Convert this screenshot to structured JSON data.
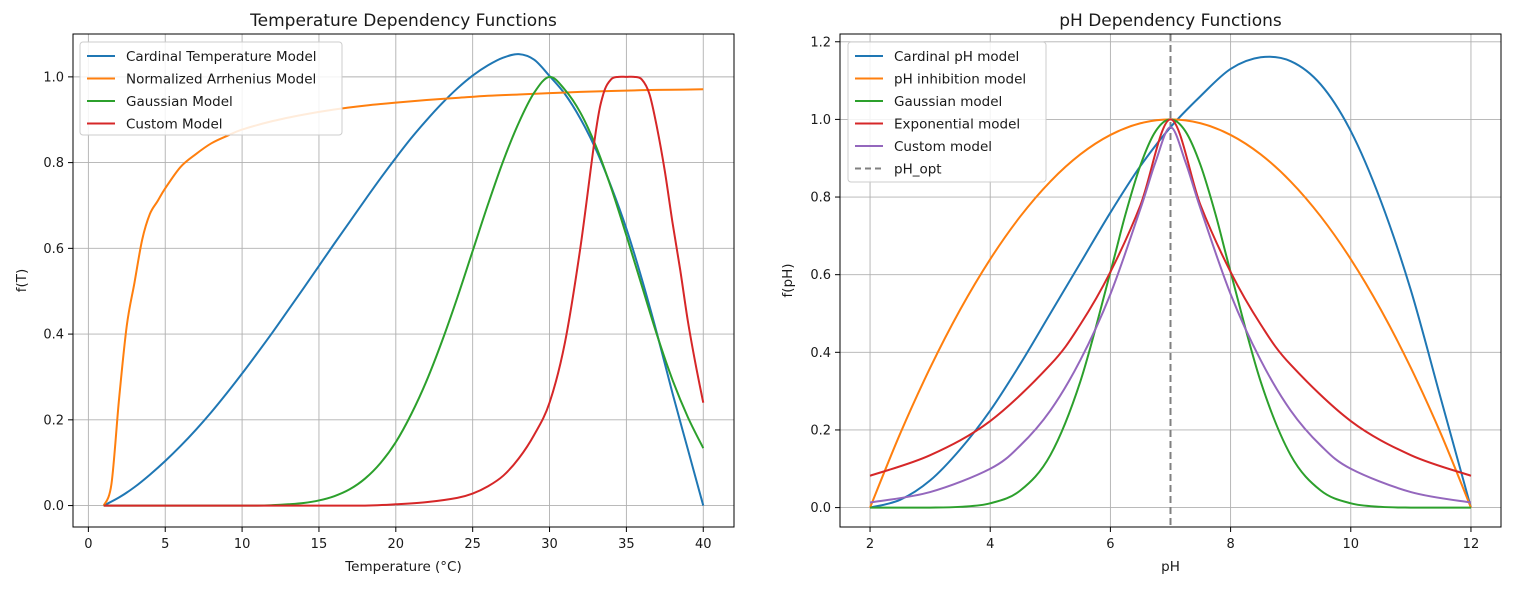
{
  "chart_data": [
    {
      "type": "line",
      "title": "Temperature Dependency Functions",
      "xlabel": "Temperature (°C)",
      "ylabel": "f(T)",
      "xlim": [
        -1,
        42
      ],
      "ylim": [
        -0.05,
        1.1
      ],
      "xticks": [
        0,
        5,
        10,
        15,
        20,
        25,
        30,
        35,
        40
      ],
      "xtick_labels": [
        "0",
        "5",
        "10",
        "15",
        "20",
        "25",
        "30",
        "35",
        "40"
      ],
      "yticks": [
        0.0,
        0.2,
        0.4,
        0.6,
        0.8,
        1.0
      ],
      "ytick_labels": [
        "0.0",
        "0.2",
        "0.4",
        "0.6",
        "0.8",
        "1.0"
      ],
      "grid": true,
      "legend_position": "top-left",
      "series": [
        {
          "name": "Cardinal Temperature Model",
          "color": "#1f77b4",
          "x": [
            1,
            2,
            3,
            4,
            5,
            6,
            7,
            8,
            9,
            10,
            11,
            12,
            13,
            14,
            15,
            16,
            17,
            18,
            19,
            20,
            21,
            22,
            23,
            24,
            25,
            26,
            27,
            28,
            29,
            30,
            31,
            32,
            33,
            34,
            35,
            36,
            37,
            38,
            39,
            40
          ],
          "y": [
            0,
            0.019,
            0.043,
            0.072,
            0.104,
            0.139,
            0.177,
            0.218,
            0.262,
            0.308,
            0.356,
            0.405,
            0.456,
            0.507,
            0.559,
            0.611,
            0.662,
            0.713,
            0.763,
            0.811,
            0.857,
            0.899,
            0.938,
            0.973,
            1.003,
            1.027,
            1.045,
            1.053,
            1.04,
            1.002,
            0.96,
            0.903,
            0.832,
            0.745,
            0.646,
            0.529,
            0.4,
            0.262,
            0.131,
            0.0
          ]
        },
        {
          "name": "Normalized Arrhenius Model",
          "color": "#ff7f0e",
          "x": [
            1,
            1.5,
            2,
            2.5,
            3,
            3.5,
            4,
            4.5,
            5,
            6,
            7,
            8,
            9,
            10,
            12,
            14,
            16,
            18,
            20,
            22,
            24,
            26,
            28,
            30,
            32,
            34,
            36,
            38,
            40
          ],
          "y": [
            0,
            0.05,
            0.25,
            0.42,
            0.52,
            0.62,
            0.68,
            0.71,
            0.74,
            0.79,
            0.82,
            0.845,
            0.862,
            0.877,
            0.897,
            0.912,
            0.924,
            0.933,
            0.94,
            0.946,
            0.951,
            0.956,
            0.959,
            0.962,
            0.965,
            0.967,
            0.969,
            0.97,
            0.971
          ]
        },
        {
          "name": "Gaussian Model",
          "color": "#2ca02c",
          "x": [
            1,
            3,
            5,
            7,
            9,
            11,
            12,
            13,
            14,
            15,
            16,
            17,
            18,
            19,
            20,
            21,
            22,
            23,
            24,
            25,
            26,
            27,
            28,
            29,
            30,
            31,
            32,
            33,
            34,
            35,
            36,
            37,
            38,
            39,
            40
          ],
          "y": [
            0,
            0,
            0,
            0,
            0,
            0,
            0.001,
            0.003,
            0.006,
            0.012,
            0.022,
            0.038,
            0.063,
            0.099,
            0.148,
            0.213,
            0.291,
            0.383,
            0.485,
            0.594,
            0.703,
            0.805,
            0.893,
            0.963,
            1.0,
            0.97,
            0.917,
            0.84,
            0.742,
            0.63,
            0.513,
            0.397,
            0.293,
            0.206,
            0.134
          ]
        },
        {
          "name": "Custom Model",
          "color": "#d62728",
          "x": [
            1,
            10,
            15,
            18,
            20,
            22,
            24,
            25,
            26,
            27,
            28,
            29,
            30,
            31,
            32,
            33,
            33.5,
            34,
            34.5,
            35,
            35.5,
            36,
            36.5,
            37,
            37.5,
            38,
            38.5,
            39,
            39.5,
            40
          ],
          "y": [
            0,
            0,
            0,
            0,
            0.003,
            0.008,
            0.018,
            0.028,
            0.045,
            0.07,
            0.11,
            0.165,
            0.24,
            0.38,
            0.6,
            0.87,
            0.96,
            0.994,
            1.0,
            1.0,
            1.0,
            0.994,
            0.96,
            0.88,
            0.78,
            0.66,
            0.55,
            0.43,
            0.33,
            0.24
          ]
        }
      ]
    },
    {
      "type": "line",
      "title": "pH Dependency Functions",
      "xlabel": "pH",
      "ylabel": "f(pH)",
      "xlim": [
        1.5,
        12.5
      ],
      "ylim": [
        -0.05,
        1.22
      ],
      "xticks": [
        2,
        4,
        6,
        8,
        10,
        12
      ],
      "xtick_labels": [
        "2",
        "4",
        "6",
        "8",
        "10",
        "12"
      ],
      "yticks": [
        0.0,
        0.2,
        0.4,
        0.6,
        0.8,
        1.0,
        1.2
      ],
      "ytick_labels": [
        "0.0",
        "0.2",
        "0.4",
        "0.6",
        "0.8",
        "1.0",
        "1.2"
      ],
      "grid": true,
      "legend_position": "top-left",
      "vline": {
        "name": "pH_opt",
        "x": 7,
        "color": "#808080",
        "style": "dashed"
      },
      "series": [
        {
          "name": "Cardinal pH model",
          "color": "#1f77b4",
          "x": [
            2,
            2.5,
            3,
            3.5,
            4,
            4.5,
            5,
            5.5,
            6,
            6.5,
            7,
            7.5,
            8,
            8.5,
            9,
            9.5,
            10,
            10.5,
            11,
            11.5,
            12
          ],
          "y": [
            0,
            0.02,
            0.07,
            0.15,
            0.25,
            0.37,
            0.5,
            0.63,
            0.76,
            0.88,
            0.98,
            1.06,
            1.13,
            1.16,
            1.15,
            1.09,
            0.97,
            0.79,
            0.56,
            0.28,
            0.0
          ]
        },
        {
          "name": "pH inhibition model",
          "color": "#ff7f0e",
          "x": [
            2,
            2.5,
            3,
            3.5,
            4,
            4.5,
            5,
            5.5,
            6,
            6.5,
            7,
            7.5,
            8,
            8.5,
            9,
            9.5,
            10,
            10.5,
            11,
            11.5,
            12
          ],
          "y": [
            0,
            0.19,
            0.36,
            0.51,
            0.64,
            0.75,
            0.84,
            0.91,
            0.96,
            0.99,
            1.0,
            0.99,
            0.96,
            0.91,
            0.84,
            0.75,
            0.64,
            0.51,
            0.36,
            0.19,
            0.0
          ]
        },
        {
          "name": "Gaussian model",
          "color": "#2ca02c",
          "x": [
            2,
            3,
            3.5,
            4,
            4.5,
            5,
            5.5,
            6,
            6.25,
            6.5,
            6.75,
            7,
            7.25,
            7.5,
            7.75,
            8,
            8.5,
            9,
            9.5,
            10,
            10.5,
            11,
            12
          ],
          "y": [
            0,
            0,
            0.002,
            0.011,
            0.044,
            0.135,
            0.325,
            0.607,
            0.755,
            0.882,
            0.969,
            1.0,
            0.969,
            0.882,
            0.755,
            0.607,
            0.325,
            0.135,
            0.044,
            0.011,
            0.002,
            0,
            0
          ]
        },
        {
          "name": "Exponential model",
          "color": "#d62728",
          "x": [
            2,
            3,
            4,
            5,
            5.5,
            6,
            6.5,
            7,
            7.5,
            8,
            8.5,
            9,
            10,
            11,
            12
          ],
          "y": [
            0.082,
            0.135,
            0.223,
            0.368,
            0.472,
            0.607,
            0.779,
            1.0,
            0.779,
            0.607,
            0.472,
            0.368,
            0.223,
            0.135,
            0.082
          ]
        },
        {
          "name": "Custom model",
          "color": "#9467bd",
          "x": [
            2,
            3,
            4,
            4.5,
            5,
            5.5,
            6,
            6.5,
            6.75,
            7,
            7.25,
            7.5,
            8,
            8.5,
            9,
            9.5,
            10,
            11,
            12
          ],
          "y": [
            0.013,
            0.04,
            0.1,
            0.16,
            0.25,
            0.38,
            0.55,
            0.77,
            0.89,
            0.98,
            0.89,
            0.77,
            0.55,
            0.38,
            0.25,
            0.16,
            0.1,
            0.04,
            0.013
          ]
        }
      ]
    }
  ]
}
